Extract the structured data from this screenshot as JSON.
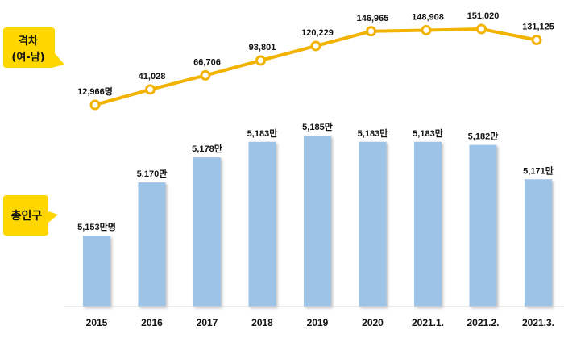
{
  "chart_data": [
    {
      "type": "line",
      "label": "격차\n(여-남)",
      "categories": [
        "2015",
        "2016",
        "2017",
        "2018",
        "2019",
        "2020",
        "2021.1.",
        "2021.2.",
        "2021.3."
      ],
      "values": [
        12966,
        41028,
        66706,
        93801,
        120229,
        146965,
        148908,
        151020,
        131125
      ],
      "data_labels": [
        "12,966명",
        "41,028",
        "66,706",
        "93,801",
        "120,229",
        "146,965",
        "148,908",
        "151,020",
        "131,125"
      ],
      "color": "#f2b200",
      "marker_fill": "#ffffff"
    },
    {
      "type": "bar",
      "label": "총인구",
      "categories": [
        "2015",
        "2016",
        "2017",
        "2018",
        "2019",
        "2020",
        "2021.1.",
        "2021.2.",
        "2021.3."
      ],
      "values": [
        5153,
        5170,
        5178,
        5183,
        5185,
        5183,
        5183,
        5182,
        5171
      ],
      "data_labels": [
        "5,153만명",
        "5,170만",
        "5,178만",
        "5,183만",
        "5,185만",
        "5,183만",
        "5,183만",
        "5,182만",
        "5,171만"
      ],
      "color": "#9dc3e6"
    }
  ],
  "callouts": {
    "gap": {
      "line1": "격차",
      "line2": "(여-남)",
      "fill": "#ffd700"
    },
    "population": {
      "text": "총인구",
      "fill": "#ffd700"
    }
  }
}
